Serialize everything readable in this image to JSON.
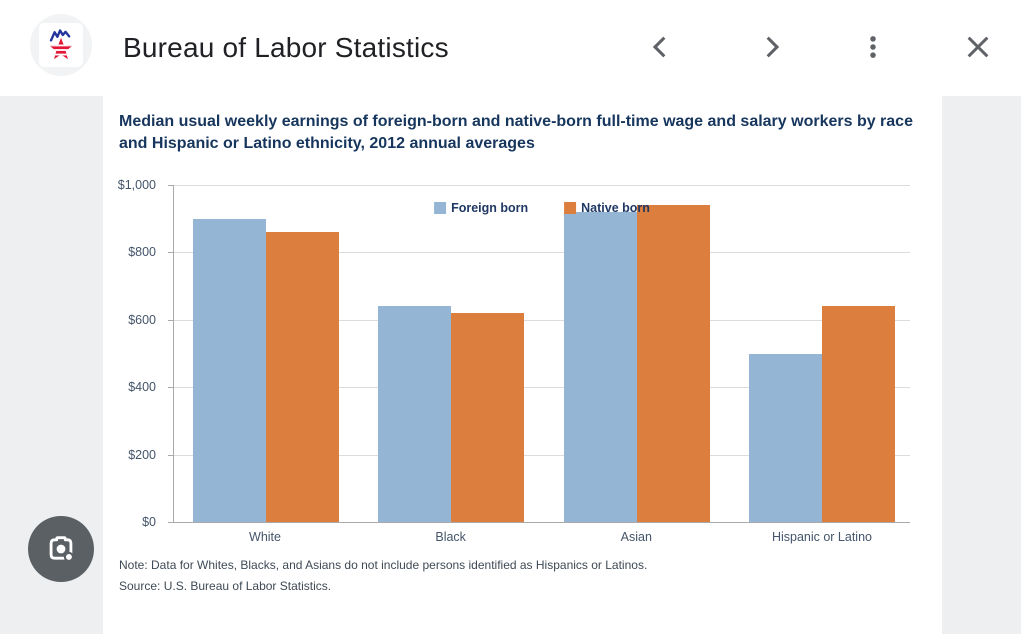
{
  "header": {
    "title": "Bureau of Labor Statistics",
    "icons": {
      "logo": "bls-star-logo",
      "back": "chevron-left",
      "forward": "chevron-right",
      "more": "kebab-menu",
      "close": "close-x",
      "lens": "google-lens-camera"
    },
    "icon_color": "#5f6368"
  },
  "chart_data": {
    "type": "bar",
    "title": "Median usual weekly earnings of foreign-born and native-born full-time wage and salary workers by race and Hispanic or Latino ethnicity, 2012 annual averages",
    "categories": [
      "White",
      "Black",
      "Asian",
      "Hispanic or Latino"
    ],
    "series": [
      {
        "name": "Foreign born",
        "color": "#94b6d4",
        "values": [
          900,
          640,
          920,
          500
        ]
      },
      {
        "name": "Native born",
        "color": "#dc7e3d",
        "values": [
          860,
          620,
          940,
          640
        ]
      }
    ],
    "ylim": [
      0,
      1000
    ],
    "ytick_step": 200,
    "y_ticks_top_to_bottom": [
      "$1,000",
      "$800",
      "$600",
      "$400",
      "$200",
      "$0"
    ],
    "unit": "USD per week",
    "grid": true,
    "legend_position": "top-center",
    "note": "Note: Data for Whites, Blacks, and Asians do not include persons identified as Hispanics or Latinos.",
    "source": "Source: U.S. Bureau of Labor Statistics."
  },
  "colors": {
    "chart_title_text": "#17365d",
    "axis_label_text": "#44546a",
    "note_text": "#3f4a55",
    "viewer_background": "#edeff1",
    "lens_button_background": "#5b6064"
  }
}
